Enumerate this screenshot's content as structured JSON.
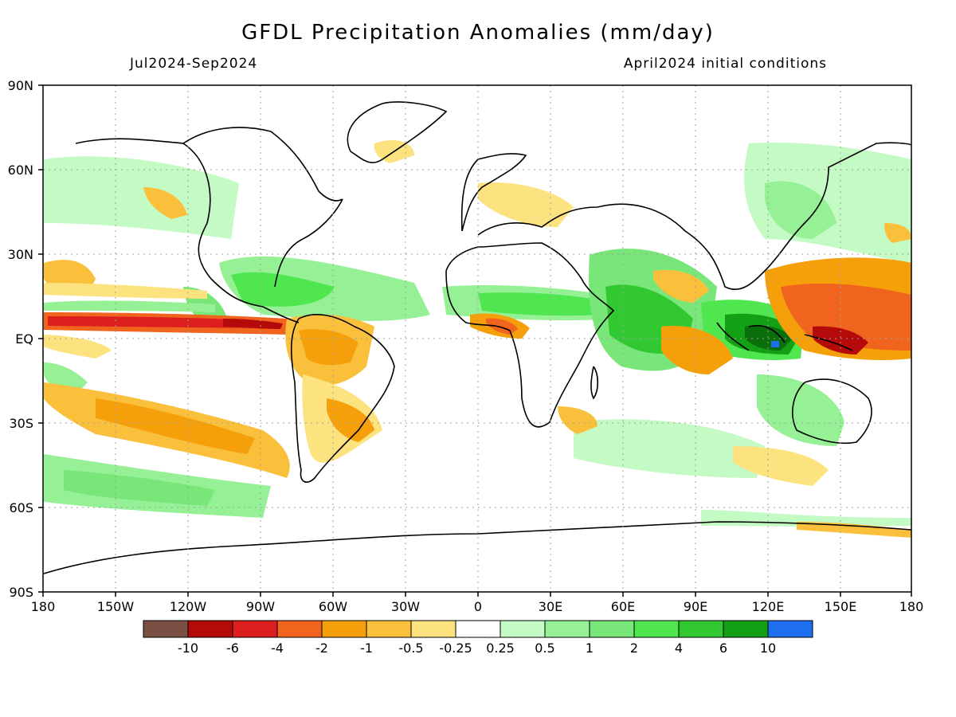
{
  "header": {
    "title": "GFDL Precipitation Anomalies (mm/day)",
    "period": "Jul2024-Sep2024",
    "init": "April2024 initial conditions"
  },
  "map": {
    "lat_labels": [
      "90N",
      "60N",
      "30N",
      "EQ",
      "30S",
      "60S",
      "90S"
    ],
    "lon_labels": [
      "180",
      "150W",
      "120W",
      "90W",
      "60W",
      "30W",
      "0",
      "30E",
      "60E",
      "90E",
      "120E",
      "150E",
      "180"
    ]
  },
  "legend": {
    "colors": [
      "#7a5045",
      "#b40a0a",
      "#dc1e1e",
      "#f0641e",
      "#f5a00a",
      "#fac03c",
      "#fde380",
      "#ffffff",
      "#c4fac4",
      "#96f096",
      "#78e678",
      "#50e650",
      "#32c832",
      "#14a014",
      "#1e6ef0"
    ],
    "labels": [
      "-10",
      "-6",
      "-4",
      "-2",
      "-1",
      "-0.5",
      "-0.25",
      "0.25",
      "0.5",
      "1",
      "2",
      "4",
      "6",
      "10"
    ]
  }
}
